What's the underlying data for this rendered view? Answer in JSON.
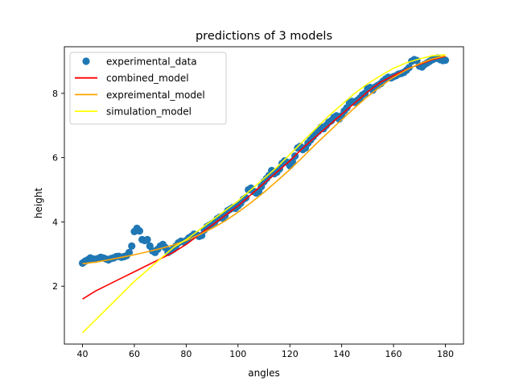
{
  "chart_data": {
    "type": "scatter+line",
    "title": "predictions of 3 models",
    "xlabel": "angles",
    "ylabel": "height",
    "xlim": [
      33,
      187
    ],
    "ylim": [
      0.2,
      9.45
    ],
    "xticks": [
      40,
      60,
      80,
      100,
      120,
      140,
      160,
      180
    ],
    "yticks": [
      2,
      4,
      6,
      8
    ],
    "grid": false,
    "legend": "top-left",
    "series": [
      {
        "name": "experimental_data",
        "kind": "scatter",
        "color": "#1f77b4",
        "x": [
          40,
          41,
          42,
          43,
          44,
          45,
          46,
          47,
          48,
          49,
          50,
          51,
          52,
          53,
          54,
          55,
          56,
          57,
          58,
          59,
          60,
          61,
          62,
          63,
          64,
          65,
          66,
          67,
          68,
          69,
          70,
          71,
          72,
          73,
          74,
          75,
          76,
          77,
          78,
          79,
          80,
          81,
          82,
          83,
          84,
          85,
          86,
          87,
          88,
          89,
          90,
          91,
          92,
          93,
          94,
          95,
          96,
          97,
          98,
          99,
          100,
          101,
          102,
          103,
          104,
          105,
          106,
          107,
          108,
          109,
          110,
          111,
          112,
          113,
          114,
          115,
          116,
          117,
          118,
          119,
          120,
          121,
          122,
          123,
          124,
          125,
          126,
          127,
          128,
          129,
          130,
          131,
          132,
          133,
          134,
          135,
          136,
          137,
          138,
          139,
          140,
          141,
          142,
          143,
          144,
          145,
          146,
          147,
          148,
          149,
          150,
          151,
          152,
          153,
          154,
          155,
          156,
          157,
          158,
          159,
          160,
          161,
          162,
          163,
          164,
          165,
          166,
          167,
          168,
          169,
          170,
          171,
          172,
          173,
          174,
          175,
          176,
          177,
          178,
          179,
          180
        ],
        "y": [
          2.72,
          2.78,
          2.82,
          2.88,
          2.85,
          2.84,
          2.86,
          2.9,
          2.88,
          2.85,
          2.82,
          2.86,
          2.88,
          2.92,
          2.93,
          2.9,
          2.92,
          2.95,
          3.05,
          3.25,
          3.7,
          3.8,
          3.72,
          3.45,
          3.42,
          3.45,
          3.25,
          3.1,
          3.05,
          3.15,
          3.25,
          3.3,
          3.2,
          3.05,
          3.1,
          3.15,
          3.25,
          3.35,
          3.4,
          3.38,
          3.42,
          3.5,
          3.55,
          3.62,
          3.6,
          3.55,
          3.58,
          3.75,
          3.85,
          3.9,
          3.95,
          4.0,
          4.1,
          4.15,
          4.12,
          4.2,
          4.35,
          4.4,
          4.45,
          4.42,
          4.5,
          4.58,
          4.7,
          4.75,
          5.0,
          5.05,
          4.95,
          4.9,
          4.95,
          5.1,
          5.25,
          5.35,
          5.45,
          5.6,
          5.5,
          5.55,
          5.65,
          5.82,
          5.9,
          5.85,
          5.75,
          5.88,
          6.05,
          6.3,
          6.35,
          6.25,
          6.3,
          6.45,
          6.55,
          6.65,
          6.75,
          6.82,
          6.95,
          6.9,
          7.0,
          7.1,
          7.15,
          7.25,
          7.3,
          7.2,
          7.3,
          7.45,
          7.55,
          7.7,
          7.75,
          7.72,
          7.78,
          7.85,
          7.95,
          8.0,
          8.15,
          8.18,
          8.1,
          8.2,
          8.25,
          8.3,
          8.38,
          8.45,
          8.5,
          8.48,
          8.52,
          8.55,
          8.6,
          8.62,
          8.65,
          8.72,
          8.8,
          9.0,
          9.05,
          9.02,
          8.85,
          8.82,
          8.9,
          8.95,
          9.0,
          9.05,
          9.08,
          9.1,
          9.05,
          9.02,
          9.03
        ]
      },
      {
        "name": "combined_model",
        "kind": "line",
        "color": "#ff0000",
        "x": [
          40,
          45,
          50,
          55,
          60,
          65,
          70,
          75,
          80,
          85,
          90,
          95,
          100,
          105,
          110,
          115,
          120,
          125,
          130,
          135,
          140,
          145,
          150,
          155,
          160,
          165,
          170,
          175,
          180
        ],
        "y": [
          1.6,
          1.85,
          2.05,
          2.25,
          2.45,
          2.65,
          2.85,
          3.05,
          3.3,
          3.6,
          3.9,
          4.2,
          4.5,
          4.85,
          5.2,
          5.55,
          5.9,
          6.3,
          6.65,
          7.0,
          7.35,
          7.7,
          8.05,
          8.35,
          8.55,
          8.75,
          8.9,
          9.05,
          9.15
        ]
      },
      {
        "name": "expreimental_model",
        "kind": "line",
        "color": "#ffa500",
        "x": [
          40,
          45,
          50,
          55,
          60,
          65,
          70,
          75,
          80,
          85,
          90,
          95,
          100,
          105,
          110,
          115,
          120,
          125,
          130,
          135,
          140,
          145,
          150,
          155,
          160,
          165,
          170,
          175,
          180
        ],
        "y": [
          2.7,
          2.75,
          2.82,
          2.9,
          2.98,
          3.07,
          3.17,
          3.28,
          3.42,
          3.6,
          3.8,
          4.03,
          4.3,
          4.6,
          4.92,
          5.27,
          5.63,
          6.02,
          6.42,
          6.8,
          7.18,
          7.55,
          7.9,
          8.22,
          8.5,
          8.73,
          8.92,
          9.07,
          9.17
        ]
      },
      {
        "name": "simulation_model",
        "kind": "line",
        "color": "#ffff00",
        "x": [
          40,
          45,
          50,
          55,
          60,
          65,
          70,
          75,
          80,
          85,
          90,
          95,
          100,
          105,
          110,
          115,
          120,
          125,
          130,
          135,
          140,
          145,
          150,
          155,
          160,
          165,
          170,
          175,
          180
        ],
        "y": [
          0.55,
          0.95,
          1.35,
          1.75,
          2.15,
          2.5,
          2.85,
          3.2,
          3.45,
          3.75,
          4.05,
          4.35,
          4.65,
          5.0,
          5.35,
          5.7,
          6.1,
          6.5,
          6.9,
          7.3,
          7.65,
          8.0,
          8.3,
          8.55,
          8.78,
          8.95,
          9.07,
          9.17,
          9.2
        ]
      }
    ]
  }
}
